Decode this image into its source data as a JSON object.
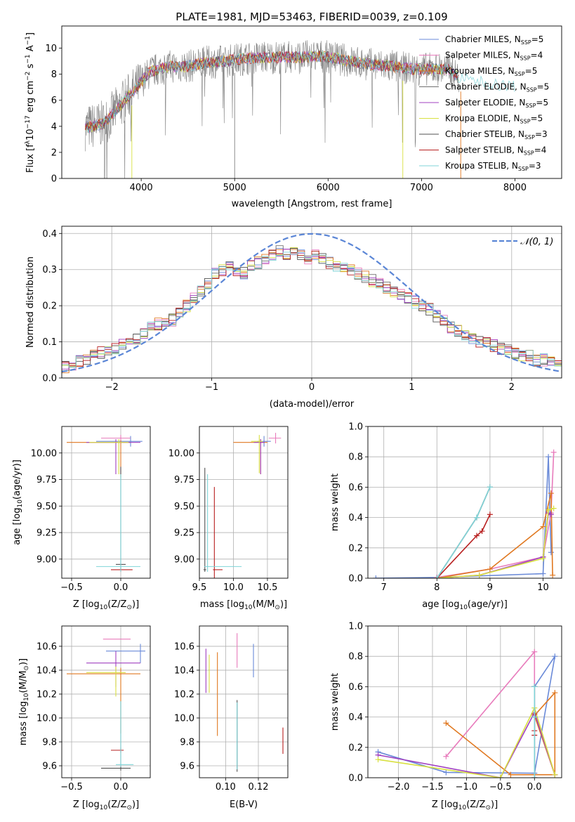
{
  "figure": {
    "title": "PLATE=1981, MJD=53463, FIBERID=0039, z=0.109",
    "colors": {
      "series": [
        "#6a8ad8",
        "#9b2fc0",
        "#e07820",
        "#707070",
        "#a040c0",
        "#e8e060",
        "#505050",
        "#b82020",
        "#80d4d8"
      ],
      "chabrier_miles": "#6a8ad8",
      "salpeter_miles": "#e87cbc",
      "kroupa_miles": "#e07820",
      "chabrier_elodie": "#707070",
      "salpeter_elodie": "#a040c0",
      "kroupa_elodie": "#d8e040",
      "chabrier_stelib": "#505050",
      "salpeter_stelib": "#b82020",
      "kroupa_stelib": "#80d4d8",
      "gaussian": "#5b86d6",
      "grid": "#b0b0b0"
    }
  },
  "chart_data": [
    {
      "type": "line",
      "panel": "spectrum",
      "xlabel": "wavelength [Angstrom, rest frame]",
      "ylabel_parts": [
        "Flux [f",
        "λ",
        "10",
        "−17",
        " erg cm",
        "−2",
        " s",
        "−1",
        " A",
        "−1",
        "]"
      ],
      "xlim": [
        3150,
        8500
      ],
      "ylim": [
        0,
        11.7
      ],
      "xticks": [
        4000,
        5000,
        6000,
        7000,
        8000
      ],
      "yticks": [
        0,
        2,
        4,
        6,
        8,
        10
      ],
      "grid": false,
      "legend_position": "right",
      "legend": [
        {
          "base": "Chabrier MILES, N",
          "sub": "SSP",
          "tail": "=5",
          "color": "#6a8ad8"
        },
        {
          "base": "Salpeter MILES, N",
          "sub": "SSP",
          "tail": "=4",
          "color": "#e87cbc"
        },
        {
          "base": "Kroupa MILES, N",
          "sub": "SSP",
          "tail": "=5",
          "color": "#e07820"
        },
        {
          "base": "Chabrier ELODIE, N",
          "sub": "SSP",
          "tail": "=5",
          "color": "#707070"
        },
        {
          "base": "Salpeter ELODIE, N",
          "sub": "SSP",
          "tail": "=5",
          "color": "#a040c0"
        },
        {
          "base": "Kroupa ELODIE, N",
          "sub": "SSP",
          "tail": "=5",
          "color": "#d8e040"
        },
        {
          "base": "Chabrier STELIB, N",
          "sub": "SSP",
          "tail": "=3",
          "color": "#505050"
        },
        {
          "base": "Salpeter STELIB, N",
          "sub": "SSP",
          "tail": "=4",
          "color": "#b82020"
        },
        {
          "base": "Kroupa STELIB, N",
          "sub": "SSP",
          "tail": "=3",
          "color": "#80d4d8"
        }
      ],
      "continuum_knots": {
        "x": [
          3400,
          3600,
          3800,
          3950,
          4100,
          4300,
          4500,
          4700,
          4900,
          5100,
          5300,
          5500,
          5700,
          5900,
          6100,
          6300,
          6500,
          6700,
          6900,
          7100,
          7300,
          7400,
          7800,
          8100,
          8400
        ],
        "y": [
          3.9,
          4.2,
          5.8,
          7.0,
          8.2,
          8.6,
          8.6,
          8.9,
          9.0,
          9.2,
          9.3,
          9.3,
          9.3,
          9.4,
          9.2,
          8.9,
          8.7,
          8.6,
          8.4,
          8.4,
          8.4,
          7.7,
          7.2,
          7.0,
          6.9
        ]
      },
      "observed_x_range": [
        3400,
        7400
      ],
      "model_x_range": [
        3400,
        8000
      ],
      "drop_lines_x": [
        3900,
        5000,
        6800,
        7420
      ]
    },
    {
      "type": "step",
      "panel": "residuals",
      "xlabel": "(data-model)/error",
      "ylabel": "Normed distribution",
      "xlim": [
        -2.5,
        2.5
      ],
      "ylim": [
        0,
        0.42
      ],
      "xticks": [
        -2,
        -1,
        0,
        1,
        2
      ],
      "yticks": [
        0.0,
        0.1,
        0.2,
        0.3,
        0.4
      ],
      "grid": true,
      "legend": [
        {
          "label": "𝒩(0, 1)",
          "style": "dashed"
        }
      ],
      "legend_position": "upper right",
      "bin_width": 0.1,
      "base_profile": [
        0.03,
        0.035,
        0.045,
        0.05,
        0.06,
        0.07,
        0.07,
        0.08,
        0.09,
        0.1,
        0.11,
        0.12,
        0.14,
        0.15,
        0.15,
        0.16,
        0.18,
        0.2,
        0.22,
        0.24,
        0.26,
        0.29,
        0.3,
        0.31,
        0.3,
        0.29,
        0.31,
        0.32,
        0.33,
        0.34,
        0.35,
        0.34,
        0.35,
        0.34,
        0.33,
        0.34,
        0.33,
        0.32,
        0.31,
        0.3,
        0.3,
        0.29,
        0.28,
        0.27,
        0.26,
        0.25,
        0.24,
        0.23,
        0.22,
        0.21,
        0.2,
        0.19,
        0.17,
        0.16,
        0.14,
        0.13,
        0.12,
        0.11,
        0.1,
        0.1,
        0.09,
        0.08,
        0.08,
        0.07,
        0.06,
        0.06,
        0.05,
        0.05,
        0.05,
        0.045
      ]
    },
    {
      "type": "scatter",
      "panel": "Z-age",
      "xlabel_parts": [
        "Z [log",
        "10",
        "(Z/Z",
        "⊙",
        ")]"
      ],
      "ylabel_parts": [
        "age  [log",
        "10",
        "(age/yr)]"
      ],
      "xlim": [
        -0.6,
        0.3
      ],
      "ylim": [
        8.82,
        10.25
      ],
      "xticks": [
        -0.5,
        0.0
      ],
      "yticks": [
        9.0,
        9.25,
        9.5,
        9.75,
        10.0
      ],
      "grid": true,
      "points": [
        {
          "c": "#6a8ad8",
          "x": 0.1,
          "y": 10.11,
          "ex": [
            0.35,
            0.12
          ],
          "ey": [
            0.05,
            0.05
          ]
        },
        {
          "c": "#e87cbc",
          "x": 0.0,
          "y": 10.14,
          "ex": [
            0.2,
            0.1
          ],
          "ey": [
            0.03,
            0.03
          ]
        },
        {
          "c": "#e07820",
          "x": 0.0,
          "y": 10.1,
          "ex": [
            0.55,
            0.1
          ],
          "ey": [
            0.33,
            0.02
          ]
        },
        {
          "c": "#a040c0",
          "x": -0.05,
          "y": 10.1,
          "ex": [
            0.3,
            0.25
          ],
          "ey": [
            0.3,
            0.03
          ]
        },
        {
          "c": "#d8e040",
          "x": -0.02,
          "y": 10.1,
          "ex": [
            0.3,
            0.1
          ],
          "ey": [
            0.3,
            0.03
          ]
        },
        {
          "c": "#505050",
          "x": 0.0,
          "y": 8.95,
          "ex": [
            0.05,
            0.05
          ],
          "ey": [
            0.05,
            0.92
          ]
        },
        {
          "c": "#b82020",
          "x": 0.0,
          "y": 8.9,
          "ex": [
            0.1,
            0.12
          ],
          "ey": [
            0.02,
            0.02
          ]
        },
        {
          "c": "#80d4d8",
          "x": 0.0,
          "y": 8.93,
          "ex": [
            0.25,
            0.2
          ],
          "ey": [
            0.05,
            0.87
          ]
        }
      ]
    },
    {
      "type": "scatter",
      "panel": "mass-age",
      "xlabel_parts": [
        "mass [log",
        "10",
        "(M/M",
        "⊙",
        ")]"
      ],
      "xlim": [
        9.5,
        10.8
      ],
      "ylim": [
        8.82,
        10.25
      ],
      "xticks": [
        9.5,
        10.0,
        10.5
      ],
      "yticks": [
        9.0,
        9.25,
        9.5,
        9.75,
        10.0
      ],
      "grid": true,
      "points": [
        {
          "c": "#6a8ad8",
          "x": 10.45,
          "y": 10.11,
          "ex": [
            0.1,
            0.1
          ],
          "ey": [
            0.05,
            0.05
          ]
        },
        {
          "c": "#e87cbc",
          "x": 10.62,
          "y": 10.14,
          "ex": [
            0.1,
            0.08
          ],
          "ey": [
            0.05,
            0.05
          ]
        },
        {
          "c": "#e07820",
          "x": 10.4,
          "y": 10.1,
          "ex": [
            0.4,
            0.1
          ],
          "ey": [
            0.3,
            0.03
          ]
        },
        {
          "c": "#a040c0",
          "x": 10.4,
          "y": 10.1,
          "ex": [
            0.1,
            0.06
          ],
          "ey": [
            0.3,
            0.03
          ]
        },
        {
          "c": "#d8e040",
          "x": 10.38,
          "y": 10.11,
          "ex": [
            0.12,
            0.05
          ],
          "ey": [
            0.3,
            0.06
          ]
        },
        {
          "c": "#505050",
          "x": 9.58,
          "y": 8.9,
          "ex": [
            0.02,
            0.02
          ],
          "ey": [
            0.02,
            0.96
          ]
        },
        {
          "c": "#b82020",
          "x": 9.72,
          "y": 8.9,
          "ex": [
            0.02,
            0.12
          ],
          "ey": [
            0.1,
            0.78
          ]
        },
        {
          "c": "#80d4d8",
          "x": 9.62,
          "y": 8.93,
          "ex": [
            0.05,
            0.5
          ],
          "ey": [
            0.05,
            0.87
          ]
        }
      ]
    },
    {
      "type": "line",
      "panel": "age-weight",
      "xlabel_parts": [
        "age  [log",
        "10",
        "(age/yr)]"
      ],
      "ylabel": "mass weight",
      "xlim": [
        6.7,
        10.35
      ],
      "ylim": [
        0,
        1.0
      ],
      "xticks": [
        7,
        8,
        9,
        10
      ],
      "yticks": [
        0.0,
        0.2,
        0.4,
        0.6,
        0.8,
        1.0
      ],
      "grid": true,
      "series": [
        {
          "c": "#6a8ad8",
          "x": [
            6.85,
            8.0,
            10.0,
            10.1,
            10.15
          ],
          "y": [
            0.0,
            0.005,
            0.03,
            0.8,
            0.17
          ]
        },
        {
          "c": "#e87cbc",
          "x": [
            8.0,
            9.0,
            10.0,
            10.15,
            10.2
          ],
          "y": [
            0.005,
            0.06,
            0.14,
            0.43,
            0.83
          ]
        },
        {
          "c": "#e07820",
          "x": [
            8.0,
            9.0,
            10.0,
            10.15,
            10.18
          ],
          "y": [
            0.0,
            0.06,
            0.34,
            0.56,
            0.02
          ]
        },
        {
          "c": "#a040c0",
          "x": [
            8.0,
            8.8,
            10.0,
            10.1,
            10.15
          ],
          "y": [
            0.0,
            0.02,
            0.14,
            0.43,
            0.42
          ]
        },
        {
          "c": "#d8e040",
          "x": [
            8.0,
            8.8,
            10.0,
            10.1,
            10.2
          ],
          "y": [
            0.0,
            0.02,
            0.13,
            0.45,
            0.46
          ]
        },
        {
          "c": "#505050",
          "x": [
            8.0,
            8.75,
            9.0
          ],
          "y": [
            0.0,
            0.4,
            0.6
          ]
        },
        {
          "c": "#b82020",
          "x": [
            8.0,
            8.75,
            8.85,
            9.0
          ],
          "y": [
            0.0,
            0.28,
            0.31,
            0.42
          ]
        },
        {
          "c": "#80d4d8",
          "x": [
            8.0,
            8.75,
            9.0
          ],
          "y": [
            0.0,
            0.4,
            0.6
          ]
        }
      ]
    },
    {
      "type": "scatter",
      "panel": "Z-mass",
      "xlabel_parts": [
        "Z [log",
        "10",
        "(Z/Z",
        "⊙",
        ")]"
      ],
      "ylabel_parts": [
        "mass [log",
        "10",
        "(M/M",
        "⊙",
        ")]"
      ],
      "xlim": [
        -0.6,
        0.3
      ],
      "ylim": [
        9.5,
        10.77
      ],
      "xticks": [
        -0.5,
        0.0
      ],
      "yticks": [
        9.6,
        9.8,
        10.0,
        10.2,
        10.4,
        10.6
      ],
      "grid": true,
      "points": [
        {
          "c": "#6a8ad8",
          "x": 0.2,
          "y": 10.56,
          "ex": [
            0.35,
            0.05
          ],
          "ey": [
            0.1,
            0.06
          ]
        },
        {
          "c": "#e87cbc",
          "x": 0.0,
          "y": 10.66,
          "ex": [
            0.18,
            0.1
          ],
          "ey": [
            0.0,
            0.0
          ]
        },
        {
          "c": "#e07820",
          "x": 0.0,
          "y": 10.37,
          "ex": [
            0.55,
            0.2
          ],
          "ey": [
            0.5,
            0.05
          ]
        },
        {
          "c": "#a040c0",
          "x": -0.05,
          "y": 10.46,
          "ex": [
            0.3,
            0.25
          ],
          "ey": [
            0.2,
            0.1
          ]
        },
        {
          "c": "#d8e040",
          "x": -0.05,
          "y": 10.38,
          "ex": [
            0.3,
            0.1
          ],
          "ey": [
            0.2,
            0.05
          ]
        },
        {
          "c": "#505050",
          "x": 0.0,
          "y": 9.58,
          "ex": [
            0.2,
            0.1
          ],
          "ey": [
            0.02,
            0.56
          ]
        },
        {
          "c": "#b82020",
          "x": 0.0,
          "y": 9.73,
          "ex": [
            0.1,
            0.03
          ],
          "ey": [
            0.02,
            0.02
          ]
        },
        {
          "c": "#80d4d8",
          "x": 0.0,
          "y": 9.61,
          "ex": [
            0.05,
            0.13
          ],
          "ey": [
            0.02,
            0.53
          ]
        }
      ]
    },
    {
      "type": "scatter",
      "panel": "ebv-mass",
      "xlabel": "E(B-V)",
      "xlim": [
        0.084,
        0.138
      ],
      "ylim": [
        9.5,
        10.77
      ],
      "xticks": [
        0.1,
        0.12
      ],
      "yticks": [
        9.6,
        9.8,
        10.0,
        10.2,
        10.4,
        10.6
      ],
      "grid": true,
      "points": [
        {
          "c": "#6a8ad8",
          "x": 0.117,
          "y": 10.48,
          "ey": [
            0.14,
            0.14
          ]
        },
        {
          "c": "#e87cbc",
          "x": 0.107,
          "y": 10.55,
          "ey": [
            0.13,
            0.16
          ]
        },
        {
          "c": "#e07820",
          "x": 0.095,
          "y": 10.2,
          "ey": [
            0.35,
            0.35
          ]
        },
        {
          "c": "#a040c0",
          "x": 0.088,
          "y": 10.38,
          "ey": [
            0.17,
            0.2
          ]
        },
        {
          "c": "#d8e040",
          "x": 0.09,
          "y": 10.37,
          "ey": [
            0.16,
            0.16
          ]
        },
        {
          "c": "#505050",
          "x": 0.107,
          "y": 9.85,
          "ey": [
            0.3,
            0.3
          ]
        },
        {
          "c": "#b82020",
          "x": 0.135,
          "y": 9.81,
          "ey": [
            0.11,
            0.11
          ]
        },
        {
          "c": "#80d4d8",
          "x": 0.107,
          "y": 9.85,
          "ey": [
            0.28,
            0.28
          ]
        }
      ]
    },
    {
      "type": "line",
      "panel": "Z-weight",
      "xlabel_parts": [
        "Z [log",
        "10",
        "(Z/Z",
        "⊙",
        ")]"
      ],
      "ylabel": "mass weight",
      "xlim": [
        -2.45,
        0.4
      ],
      "ylim": [
        0,
        1.0
      ],
      "xticks": [
        -2.0,
        -1.5,
        -1.0,
        -0.5,
        0.0
      ],
      "yticks": [
        0.0,
        0.2,
        0.4,
        0.6,
        0.8,
        1.0
      ],
      "grid": true,
      "series": [
        {
          "c": "#6a8ad8",
          "x": [
            -2.3,
            -1.3,
            0.0,
            0.3,
            0.0
          ],
          "y": [
            0.17,
            0.035,
            0.03,
            0.8,
            0.6
          ]
        },
        {
          "c": "#e87cbc",
          "x": [
            -1.3,
            0.0,
            0.0
          ],
          "y": [
            0.14,
            0.83,
            0.0
          ]
        },
        {
          "c": "#e07820",
          "x": [
            -1.3,
            -0.35,
            0.3,
            0.3,
            0.0,
            0.3
          ],
          "y": [
            0.36,
            0.02,
            0.02,
            0.56,
            0.41,
            0.02
          ]
        },
        {
          "c": "#a040c0",
          "x": [
            -2.3,
            -0.5,
            0.0,
            0.3
          ],
          "y": [
            0.15,
            0.0,
            0.43,
            0.02
          ]
        },
        {
          "c": "#d8e040",
          "x": [
            -2.3,
            -0.5,
            0.0,
            0.3
          ],
          "y": [
            0.12,
            0.0,
            0.46,
            0.02
          ]
        },
        {
          "c": "#505050",
          "x": [
            0.0,
            0.0,
            0.0
          ],
          "y": [
            0.6,
            0.4,
            0.0
          ]
        },
        {
          "c": "#b82020",
          "x": [
            0.0,
            0.0,
            0.0
          ],
          "y": [
            0.42,
            0.31,
            0.28
          ]
        },
        {
          "c": "#80d4d8",
          "x": [
            0.0,
            0.0,
            0.0
          ],
          "y": [
            0.6,
            0.4,
            0.0
          ]
        }
      ]
    }
  ]
}
